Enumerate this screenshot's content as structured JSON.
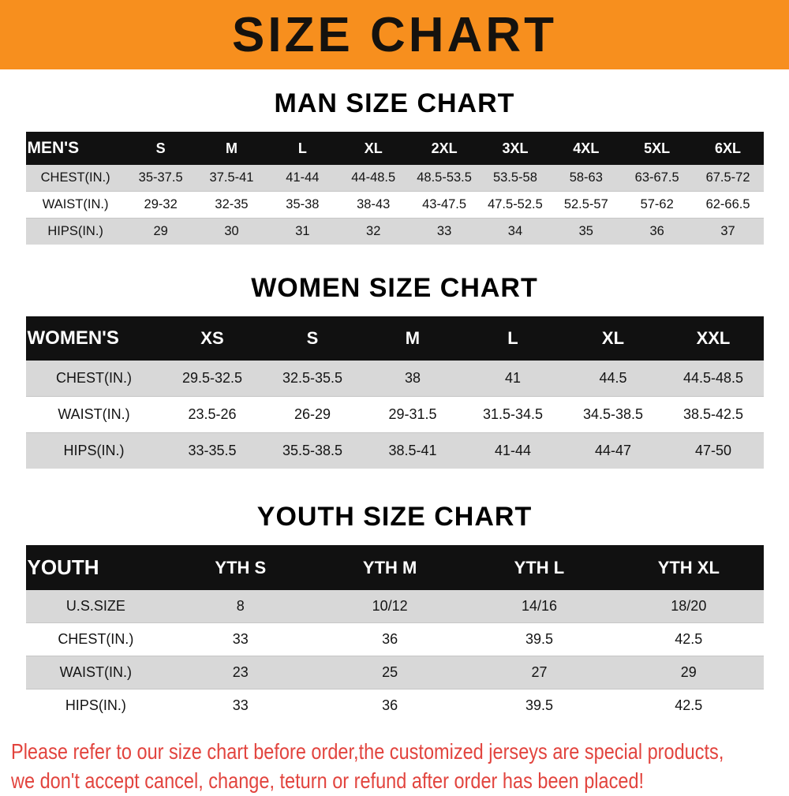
{
  "banner": {
    "title": "SIZE CHART"
  },
  "colors": {
    "banner_bg": "#f78f1e",
    "header_bg": "#111111",
    "row_shade": "#d8d8d8",
    "footer_text": "#e2443e"
  },
  "tables": [
    {
      "heading": "MAN SIZE CHART",
      "header": [
        "MEN'S",
        "S",
        "M",
        "L",
        "XL",
        "2XL",
        "3XL",
        "4XL",
        "5XL",
        "6XL"
      ],
      "rows": [
        [
          "CHEST(IN.)",
          "35-37.5",
          "37.5-41",
          "41-44",
          "44-48.5",
          "48.5-53.5",
          "53.5-58",
          "58-63",
          "63-67.5",
          "67.5-72"
        ],
        [
          "WAIST(IN.)",
          "29-32",
          "32-35",
          "35-38",
          "38-43",
          "43-47.5",
          "47.5-52.5",
          "52.5-57",
          "57-62",
          "62-66.5"
        ],
        [
          "HIPS(IN.)",
          "29",
          "30",
          "31",
          "32",
          "33",
          "34",
          "35",
          "36",
          "37"
        ]
      ]
    },
    {
      "heading": "WOMEN SIZE CHART",
      "header": [
        "WOMEN'S",
        "XS",
        "S",
        "M",
        "L",
        "XL",
        "XXL"
      ],
      "rows": [
        [
          "CHEST(IN.)",
          "29.5-32.5",
          "32.5-35.5",
          "38",
          "41",
          "44.5",
          "44.5-48.5"
        ],
        [
          "WAIST(IN.)",
          "23.5-26",
          "26-29",
          "29-31.5",
          "31.5-34.5",
          "34.5-38.5",
          "38.5-42.5"
        ],
        [
          "HIPS(IN.)",
          "33-35.5",
          "35.5-38.5",
          "38.5-41",
          "41-44",
          "44-47",
          "47-50"
        ]
      ]
    },
    {
      "heading": "YOUTH SIZE CHART",
      "header": [
        "YOUTH",
        "YTH S",
        "YTH M",
        "YTH L",
        "YTH XL"
      ],
      "rows": [
        [
          "U.S.SIZE",
          "8",
          "10/12",
          "14/16",
          "18/20"
        ],
        [
          "CHEST(IN.)",
          "33",
          "36",
          "39.5",
          "42.5"
        ],
        [
          "WAIST(IN.)",
          "23",
          "25",
          "27",
          "29"
        ],
        [
          "HIPS(IN.)",
          "33",
          "36",
          "39.5",
          "42.5"
        ]
      ]
    }
  ],
  "footer": {
    "line1": "Please refer to our size chart before order,the customized jerseys are special products,",
    "line2": "we don't accept cancel, change, teturn or refund after order has been placed!"
  }
}
